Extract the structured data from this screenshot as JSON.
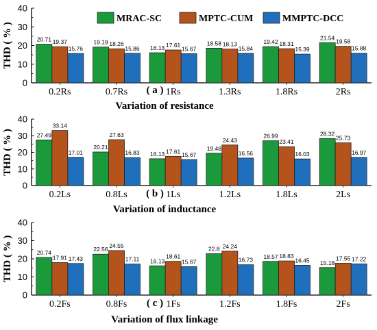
{
  "legend": [
    {
      "name": "MRAC-SC",
      "color": "#1a9a3a"
    },
    {
      "name": "MPTC-CUM",
      "color": "#b5531d"
    },
    {
      "name": "MMPTC-DCC",
      "color": "#1f6fbd"
    }
  ],
  "chart_data": [
    {
      "type": "bar",
      "panel": "( a )",
      "caption": "Variation of  resistance",
      "ylabel": "THD ( % )",
      "ylim": [
        0,
        40
      ],
      "yticks": [
        0,
        10,
        20,
        30,
        40
      ],
      "categories": [
        "0.2Rs",
        "0.7Rs",
        "1Rs",
        "1.3Rs",
        "1.8Rs",
        "2Rs"
      ],
      "series": [
        {
          "name": "MRAC-SC",
          "values": [
            20.71,
            19.19,
            16.13,
            18.58,
            19.42,
            21.54
          ],
          "labels": [
            "20.71",
            "19.19",
            "16.13",
            "18.58",
            "19.42",
            "21.54"
          ]
        },
        {
          "name": "MPTC-CUM",
          "values": [
            19.37,
            18.26,
            17.61,
            18.13,
            18.31,
            19.58
          ],
          "labels": [
            "19.37",
            "18.26",
            "17.61",
            "18.13",
            "18.31",
            "19.58"
          ]
        },
        {
          "name": "MMPTC-DCC",
          "values": [
            15.76,
            15.86,
            15.67,
            15.84,
            15.39,
            15.88
          ],
          "labels": [
            "15.76",
            "15.86",
            "15.67",
            "15.84",
            "15.39",
            "15.88"
          ]
        }
      ]
    },
    {
      "type": "bar",
      "panel": "( b )",
      "caption": "Variation of inductance",
      "ylabel": "THD ( % )",
      "ylim": [
        0,
        40
      ],
      "yticks": [
        0,
        10,
        20,
        30,
        40
      ],
      "categories": [
        "0.2Ls",
        "0.8Ls",
        "1Ls",
        "1.2Ls",
        "1.8Ls",
        "2Ls"
      ],
      "series": [
        {
          "name": "MRAC-SC",
          "values": [
            27.49,
            20.21,
            16.13,
            19.48,
            26.99,
            28.32
          ],
          "labels": [
            "27.49",
            "20.21",
            "16.13",
            "19.48",
            "26.99",
            "28.32"
          ]
        },
        {
          "name": "MPTC-CUM",
          "values": [
            33.14,
            27.63,
            17.61,
            24.43,
            23.41,
            25.73
          ],
          "labels": [
            "33.14",
            "27.63",
            "17.61",
            "24.43",
            "23.41",
            "25.73"
          ]
        },
        {
          "name": "MMPTC-DCC",
          "values": [
            17.01,
            16.83,
            15.67,
            16.56,
            16.03,
            16.97
          ],
          "labels": [
            "17.01",
            "16.83",
            "15.67",
            "16.56",
            "16.03",
            "16.97"
          ]
        }
      ]
    },
    {
      "type": "bar",
      "panel": "( c )",
      "caption": "Variation of flux linkage",
      "ylabel": "THD ( % )",
      "ylim": [
        0,
        40
      ],
      "yticks": [
        0,
        10,
        20,
        30,
        40
      ],
      "categories": [
        "0.2Fs",
        "0.8Fs",
        "1Fs",
        "1.2Fs",
        "1.8Fs",
        "2Fs"
      ],
      "series": [
        {
          "name": "MRAC-SC",
          "values": [
            20.74,
            22.56,
            16.13,
            22.8,
            18.57,
            15.18
          ],
          "labels": [
            "20.74",
            "22.56",
            "16.13",
            "22.8",
            "18.57",
            "15.18"
          ]
        },
        {
          "name": "MPTC-CUM",
          "values": [
            17.91,
            24.55,
            18.61,
            24.24,
            18.83,
            17.55
          ],
          "labels": [
            "17.91",
            "24.55",
            "18.61",
            "24.24",
            "18.83",
            "17.55"
          ]
        },
        {
          "name": "MMPTC-DCC",
          "values": [
            17.43,
            17.11,
            15.67,
            16.73,
            16.45,
            17.22
          ],
          "labels": [
            "17.43",
            "17.11",
            "15.67",
            "16.73",
            "16.45",
            "17.22"
          ]
        }
      ]
    }
  ]
}
